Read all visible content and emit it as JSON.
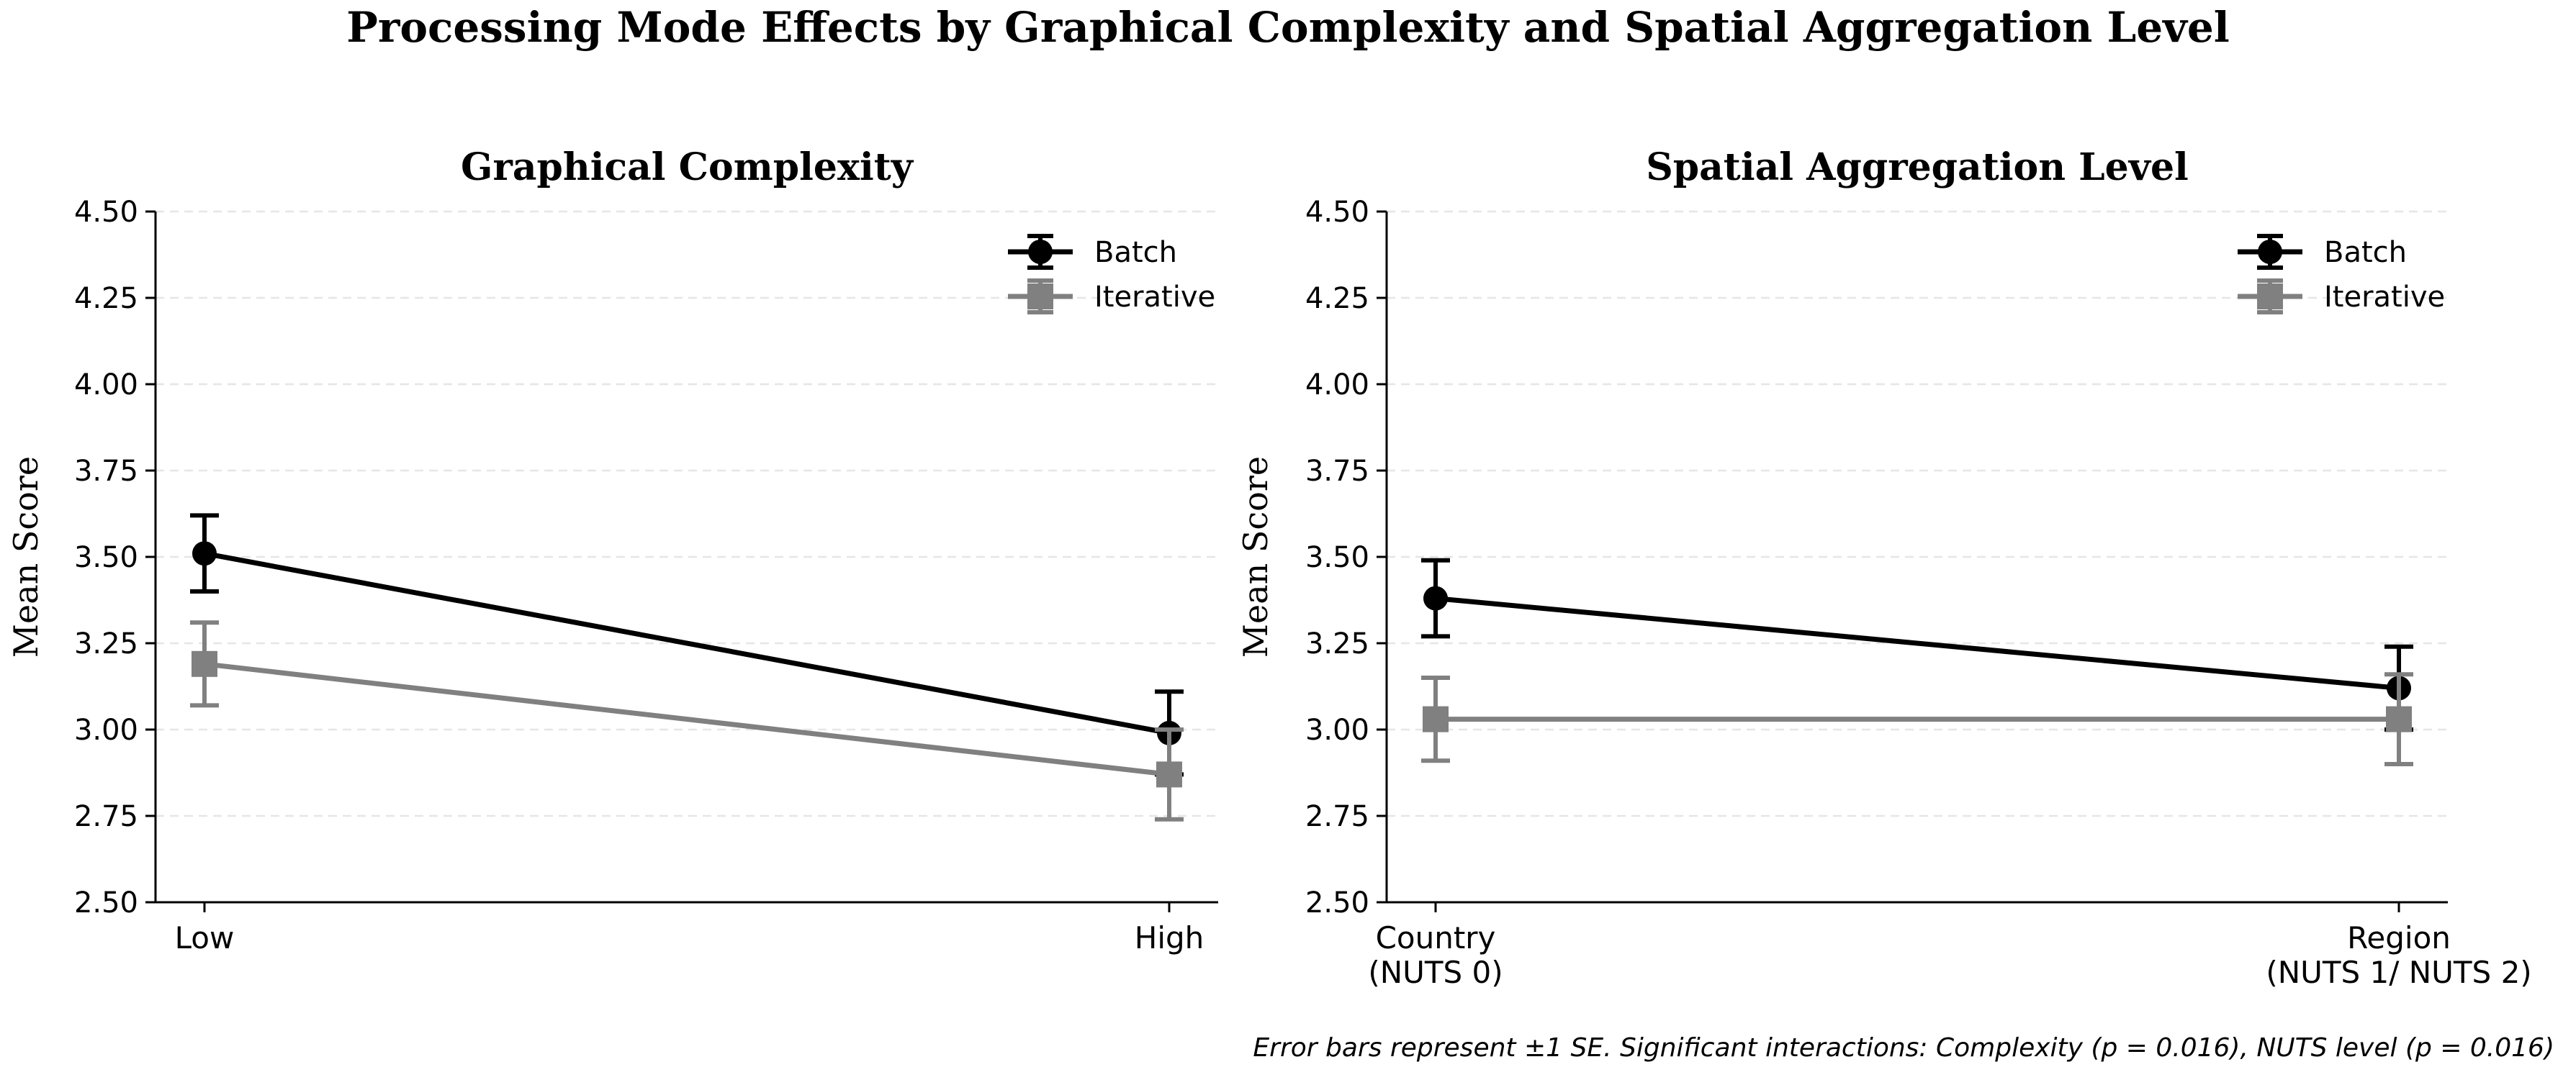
{
  "title": "Processing Mode Effects by Graphical Complexity and Spatial Aggregation Level",
  "footnote": "Error bars represent ±1 SE. Significant interactions: Complexity (p = 0.016), NUTS level (p = 0.016)",
  "colors": {
    "batch": "#000000",
    "iterative": "#808080",
    "grid": "#e6e6e6",
    "axis": "#000000"
  },
  "chart_data": [
    {
      "type": "line",
      "title": "Graphical Complexity",
      "xlabel": "",
      "ylabel": "Mean Score",
      "categories": [
        "Low",
        "High"
      ],
      "ylim": [
        2.5,
        4.5
      ],
      "yticks": [
        "2.50",
        "2.75",
        "3.00",
        "3.25",
        "3.50",
        "3.75",
        "4.00",
        "4.25",
        "4.50"
      ],
      "grid": true,
      "legend": "top-right",
      "series": [
        {
          "name": "Batch",
          "marker": "circle",
          "color": "#000000",
          "values": [
            3.51,
            2.99
          ],
          "se": [
            0.11,
            0.12
          ]
        },
        {
          "name": "Iterative",
          "marker": "square",
          "color": "#808080",
          "values": [
            3.19,
            2.87
          ],
          "se": [
            0.12,
            0.13
          ]
        }
      ]
    },
    {
      "type": "line",
      "title": "Spatial Aggregation Level",
      "xlabel": "",
      "ylabel": "Mean Score",
      "categories": [
        "Country\n(NUTS 0)",
        "Region\n(NUTS 1/ NUTS 2)"
      ],
      "ylim": [
        2.5,
        4.5
      ],
      "yticks": [
        "2.50",
        "2.75",
        "3.00",
        "3.25",
        "3.50",
        "3.75",
        "4.00",
        "4.25",
        "4.50"
      ],
      "grid": true,
      "legend": "top-right",
      "series": [
        {
          "name": "Batch",
          "marker": "circle",
          "color": "#000000",
          "values": [
            3.38,
            3.12
          ],
          "se": [
            0.11,
            0.12
          ]
        },
        {
          "name": "Iterative",
          "marker": "square",
          "color": "#808080",
          "values": [
            3.03,
            3.03
          ],
          "se": [
            0.12,
            0.13
          ]
        }
      ]
    }
  ]
}
